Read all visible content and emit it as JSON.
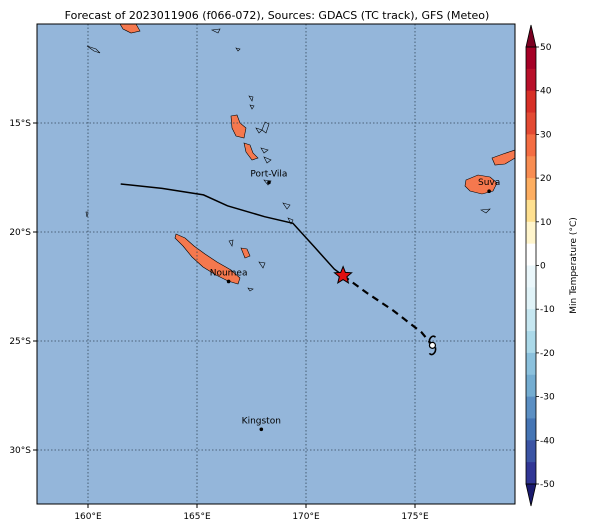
{
  "title": "Forecast of 2023011906 (f066-072), Sources: GDACS (TC track), GFS (Meteo)",
  "colors": {
    "ocean": "#94b6da",
    "land": "#f5784e",
    "grid": "#33475a",
    "track": "#000000",
    "current_position": "#e01010"
  },
  "axes": {
    "lon_ticks": [
      "160°E",
      "165°E",
      "170°E",
      "175°E"
    ],
    "lat_ticks": [
      "15°S",
      "20°S",
      "25°S",
      "30°S"
    ]
  },
  "places": [
    {
      "name": "Port-Vila"
    },
    {
      "name": "Suva"
    },
    {
      "name": "Noumea"
    },
    {
      "name": "Kingston"
    }
  ],
  "track": {
    "observed": [
      [
        161.5,
        -17.8
      ],
      [
        163.4,
        -18.0
      ],
      [
        165.3,
        -18.3
      ],
      [
        166.4,
        -18.8
      ],
      [
        168.1,
        -19.3
      ],
      [
        169.4,
        -19.6
      ],
      [
        170.4,
        -20.7
      ],
      [
        171.3,
        -21.7
      ],
      [
        171.7,
        -22.0
      ]
    ],
    "forecast": [
      [
        171.7,
        -22.0
      ],
      [
        172.8,
        -22.8
      ],
      [
        174.0,
        -23.6
      ],
      [
        175.3,
        -24.6
      ],
      [
        175.8,
        -25.2
      ]
    ],
    "current_icon": "star-icon",
    "forecast_end_icon": "cyclone-icon"
  },
  "colorbar": {
    "label": "Min Temperature (°C)",
    "ticks": [
      "50",
      "40",
      "30",
      "20",
      "10",
      "0",
      "-10",
      "-20",
      "-30",
      "-40",
      "-50"
    ],
    "levels": [
      {
        "from": 45,
        "to": 50,
        "color": "#a50026"
      },
      {
        "from": 40,
        "to": 45,
        "color": "#b8102a"
      },
      {
        "from": 35,
        "to": 40,
        "color": "#d73027"
      },
      {
        "from": 30,
        "to": 35,
        "color": "#e34a33"
      },
      {
        "from": 25,
        "to": 30,
        "color": "#f46d43"
      },
      {
        "from": 20,
        "to": 25,
        "color": "#f88d52"
      },
      {
        "from": 15,
        "to": 20,
        "color": "#fdae61"
      },
      {
        "from": 10,
        "to": 15,
        "color": "#fee090"
      },
      {
        "from": 5,
        "to": 10,
        "color": "#fff5cc"
      },
      {
        "from": 0,
        "to": 5,
        "color": "#ffffff"
      },
      {
        "from": -5,
        "to": 0,
        "color": "#eaf7fb"
      },
      {
        "from": -10,
        "to": -5,
        "color": "#e0f3f8"
      },
      {
        "from": -15,
        "to": -10,
        "color": "#c6e7f1"
      },
      {
        "from": -20,
        "to": -15,
        "color": "#abd9e9"
      },
      {
        "from": -25,
        "to": -20,
        "color": "#8bc1dd"
      },
      {
        "from": -30,
        "to": -25,
        "color": "#74add1"
      },
      {
        "from": -35,
        "to": -30,
        "color": "#5b8fc3"
      },
      {
        "from": -40,
        "to": -35,
        "color": "#4575b4"
      },
      {
        "from": -45,
        "to": -40,
        "color": "#3b54a4"
      },
      {
        "from": -50,
        "to": -45,
        "color": "#313695"
      }
    ],
    "top_cap": "#7a0021",
    "bottom_cap": "#1a1a6e"
  }
}
